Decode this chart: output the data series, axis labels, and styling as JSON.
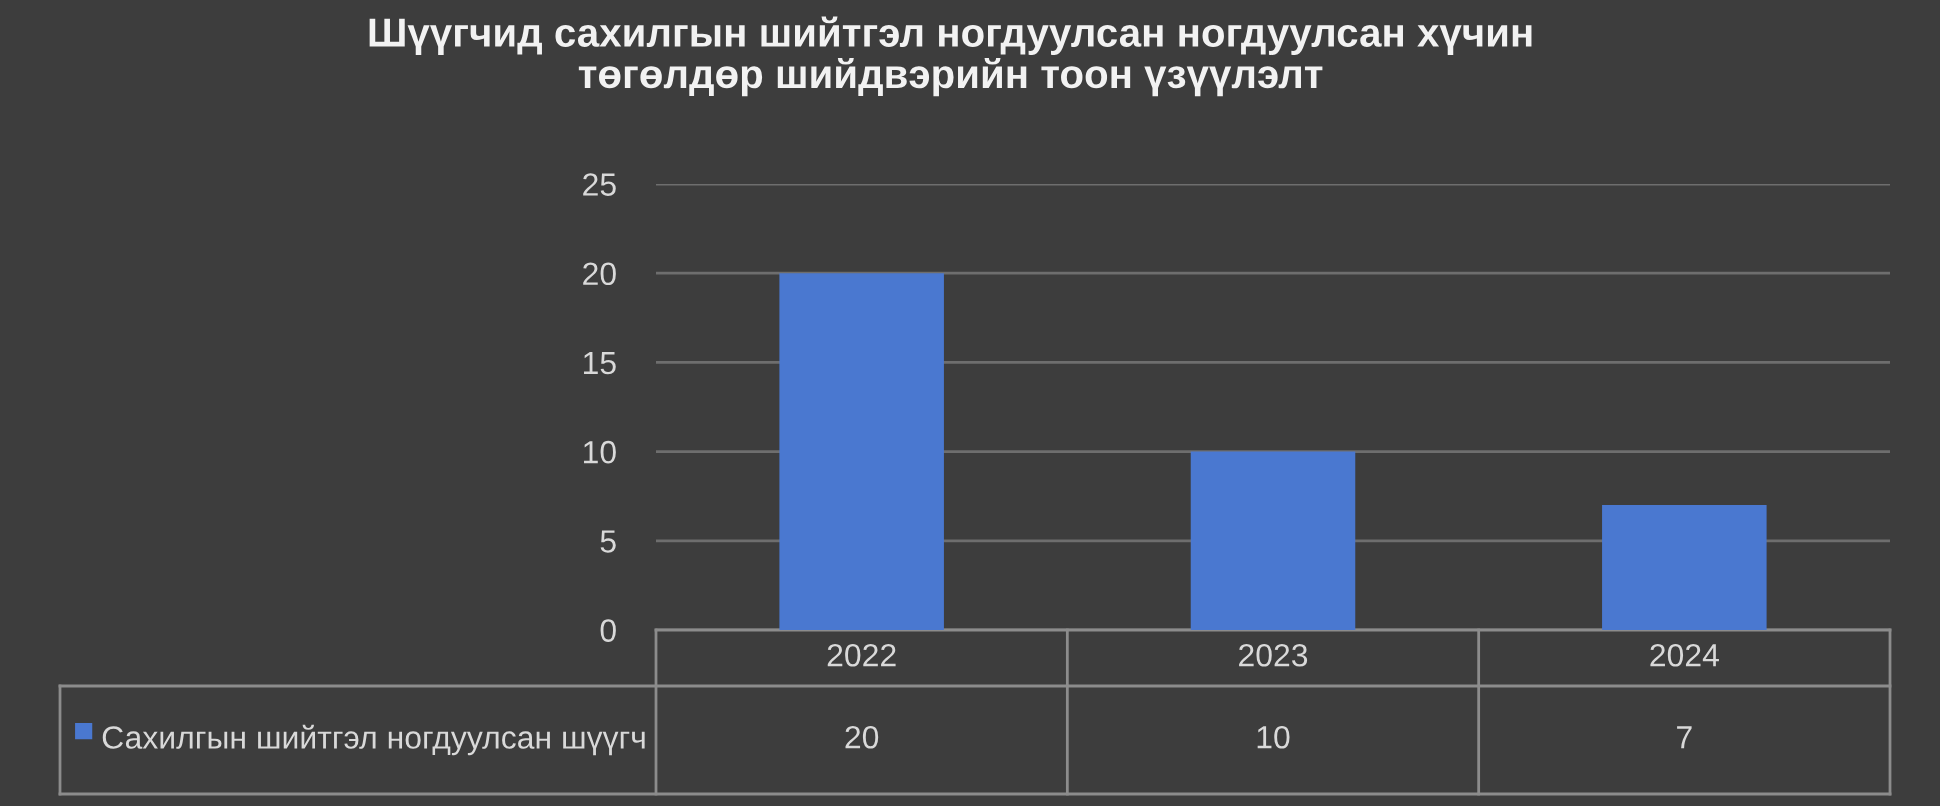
{
  "chart_data": {
    "type": "bar",
    "title": "Шүүгчид сахилгын шийтгэл ногдуулсан ногдуулсан хүчин\nтөгөлдөр шийдвэрийн тоон үзүүлэлт",
    "categories": [
      "2022",
      "2023",
      "2024"
    ],
    "series": [
      {
        "name": "Сахилгын шийтгэл ногдуулсан шүүгч",
        "color": "#4a78d0",
        "values": [
          20,
          10,
          7
        ]
      }
    ],
    "ylim": [
      0,
      25
    ],
    "yticks": [
      0,
      5,
      10,
      15,
      20,
      25
    ],
    "grid": "y",
    "data_labels": true
  }
}
